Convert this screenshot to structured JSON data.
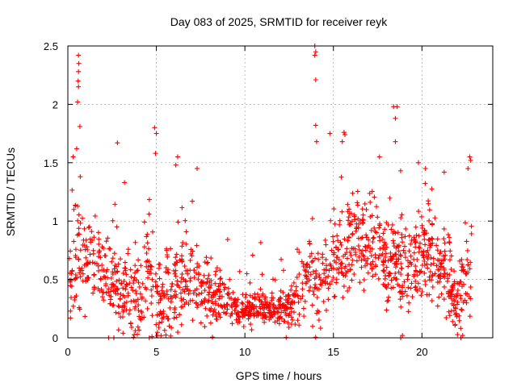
{
  "chart_data": {
    "type": "scatter",
    "title": "Day 083 of 2025, SRMTID for receiver reyk",
    "xlabel": "GPS time / hours",
    "ylabel": "SRMTID / TECUs",
    "xlim": [
      0,
      24
    ],
    "ylim": [
      0,
      2.5
    ],
    "x_ticks": [
      0,
      5,
      10,
      15,
      20
    ],
    "y_ticks": [
      0,
      0.5,
      1,
      1.5,
      2,
      2.5
    ],
    "x_tick_labels": [
      "0",
      "5",
      "10",
      "15",
      "20"
    ],
    "y_tick_labels": [
      "0",
      "0.5",
      "1",
      "1.5",
      "2",
      "2.5"
    ],
    "grid": true,
    "marker": "+",
    "color": "#ff0000",
    "envelope_hours": [
      0,
      0.5,
      1,
      1.5,
      2,
      2.5,
      3,
      3.5,
      4,
      4.5,
      5,
      5.5,
      6,
      6.5,
      7,
      7.5,
      8,
      8.5,
      9,
      9.5,
      10,
      10.5,
      11,
      11.5,
      12,
      12.5,
      13,
      13.5,
      14,
      14.5,
      15,
      15.5,
      16,
      16.5,
      17,
      17.5,
      18,
      18.5,
      19,
      19.5,
      20,
      20.5,
      21,
      21.5,
      22,
      22.5,
      23
    ],
    "envelope_median": [
      0.55,
      0.75,
      0.65,
      0.7,
      0.6,
      0.45,
      0.35,
      0.4,
      0.3,
      0.6,
      0.3,
      0.35,
      0.45,
      0.5,
      0.45,
      0.4,
      0.35,
      0.35,
      0.3,
      0.25,
      0.22,
      0.25,
      0.25,
      0.25,
      0.25,
      0.25,
      0.3,
      0.6,
      0.45,
      0.55,
      0.75,
      0.7,
      0.8,
      0.85,
      0.8,
      0.75,
      0.7,
      0.6,
      0.55,
      0.7,
      0.7,
      0.75,
      0.6,
      0.5,
      0.25,
      0.55,
      0.7
    ],
    "envelope_spread": [
      0.3,
      0.45,
      0.3,
      0.3,
      0.3,
      0.25,
      0.25,
      0.3,
      0.3,
      0.25,
      0.3,
      0.3,
      0.3,
      0.3,
      0.3,
      0.25,
      0.2,
      0.2,
      0.15,
      0.12,
      0.1,
      0.12,
      0.12,
      0.12,
      0.12,
      0.15,
      0.2,
      0.3,
      0.3,
      0.35,
      0.35,
      0.35,
      0.3,
      0.3,
      0.3,
      0.3,
      0.3,
      0.3,
      0.35,
      0.3,
      0.3,
      0.3,
      0.3,
      0.3,
      0.25,
      0.3,
      0.3
    ],
    "outliers": [
      {
        "x": 0.6,
        "y": 2.42
      },
      {
        "x": 0.62,
        "y": 2.35
      },
      {
        "x": 0.6,
        "y": 2.28
      },
      {
        "x": 0.58,
        "y": 2.2
      },
      {
        "x": 0.6,
        "y": 2.15
      },
      {
        "x": 0.55,
        "y": 2.02
      },
      {
        "x": 0.68,
        "y": 1.81
      },
      {
        "x": 0.5,
        "y": 1.62
      },
      {
        "x": 0.3,
        "y": 1.55
      },
      {
        "x": 0.7,
        "y": 1.38
      },
      {
        "x": 2.8,
        "y": 1.67
      },
      {
        "x": 3.2,
        "y": 1.33
      },
      {
        "x": 4.9,
        "y": 1.8
      },
      {
        "x": 5.0,
        "y": 1.75
      },
      {
        "x": 4.95,
        "y": 1.58
      },
      {
        "x": 6.2,
        "y": 1.55
      },
      {
        "x": 6.1,
        "y": 1.48
      },
      {
        "x": 7.3,
        "y": 1.45
      },
      {
        "x": 13.95,
        "y": 2.5
      },
      {
        "x": 14.0,
        "y": 2.45
      },
      {
        "x": 13.95,
        "y": 2.42
      },
      {
        "x": 14.0,
        "y": 2.21
      },
      {
        "x": 14.0,
        "y": 1.82
      },
      {
        "x": 14.05,
        "y": 1.68
      },
      {
        "x": 14.8,
        "y": 1.75
      },
      {
        "x": 15.6,
        "y": 1.76
      },
      {
        "x": 15.65,
        "y": 1.74
      },
      {
        "x": 15.5,
        "y": 1.68
      },
      {
        "x": 17.6,
        "y": 1.55
      },
      {
        "x": 18.4,
        "y": 1.98
      },
      {
        "x": 18.6,
        "y": 1.98
      },
      {
        "x": 18.5,
        "y": 1.88
      },
      {
        "x": 18.5,
        "y": 1.68
      },
      {
        "x": 19.8,
        "y": 1.5
      },
      {
        "x": 20.2,
        "y": 1.45
      },
      {
        "x": 22.7,
        "y": 1.55
      },
      {
        "x": 22.75,
        "y": 1.52
      },
      {
        "x": 22.6,
        "y": 1.45
      },
      {
        "x": 2.3,
        "y": 0.0
      },
      {
        "x": 2.6,
        "y": 0.0
      },
      {
        "x": 4.6,
        "y": 0.0
      },
      {
        "x": 4.75,
        "y": 0.01
      },
      {
        "x": 18.8,
        "y": 0.0
      },
      {
        "x": 18.9,
        "y": 0.02
      },
      {
        "x": 22.2,
        "y": 0.0
      },
      {
        "x": 22.3,
        "y": 0.02
      }
    ]
  }
}
